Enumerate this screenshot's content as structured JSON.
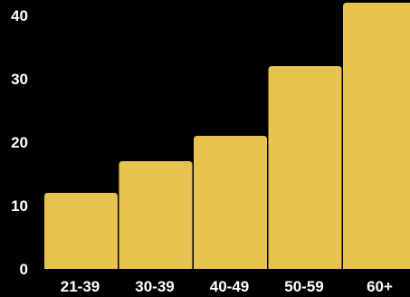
{
  "chart_data": {
    "type": "bar",
    "categories": [
      "21-39",
      "30-39",
      "40-49",
      "50-59",
      "60+"
    ],
    "values": [
      12,
      17,
      21,
      32,
      42
    ],
    "ylim": [
      0,
      42
    ],
    "yticks": [
      0,
      10,
      20,
      30,
      40
    ],
    "title": "",
    "xlabel": "",
    "ylabel": "",
    "grid": false,
    "colors": {
      "bar": "#E8C350",
      "background": "#000000",
      "text": "#FFFFFF"
    }
  }
}
